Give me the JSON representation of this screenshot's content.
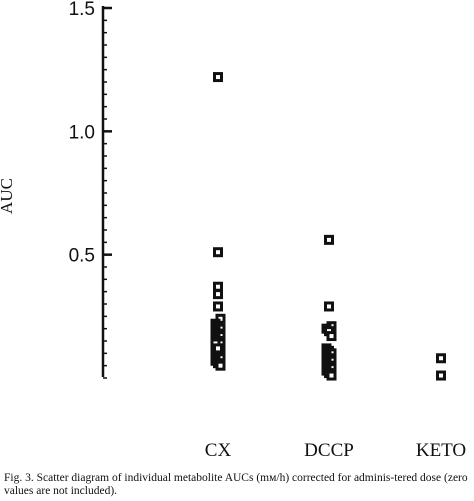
{
  "chart_data": {
    "type": "scatter",
    "title": "",
    "xlabel": "",
    "ylabel": "AUC",
    "ylim": [
      0,
      1.5
    ],
    "y_ticks": [
      "0.5",
      "1.0",
      "1.5"
    ],
    "y_tick_values": [
      0.5,
      1.0,
      1.5
    ],
    "categories": [
      "CX",
      "DCCP",
      "KETO"
    ],
    "grid": false,
    "legend": "none",
    "marker": "open-square",
    "series": [
      {
        "category": "CX",
        "values": [
          1.22,
          0.51,
          0.37,
          0.34,
          0.29,
          0.24,
          0.22,
          0.21,
          0.2,
          0.19,
          0.18,
          0.17,
          0.16,
          0.15,
          0.14,
          0.13,
          0.12,
          0.11,
          0.1,
          0.09,
          0.08,
          0.07,
          0.06,
          0.05,
          0.14,
          0.12
        ]
      },
      {
        "category": "DCCP",
        "values": [
          0.56,
          0.29,
          0.21,
          0.2,
          0.19,
          0.17,
          0.12,
          0.11,
          0.1,
          0.09,
          0.08,
          0.07,
          0.06,
          0.05,
          0.04,
          0.03,
          0.02,
          0.01
        ]
      },
      {
        "category": "KETO",
        "values": [
          0.08,
          0.01
        ]
      }
    ]
  },
  "caption": "Fig. 3. Scatter diagram of individual metabolite AUCs (mм/h) corrected for adminis-tered dose (zero values are not included)."
}
